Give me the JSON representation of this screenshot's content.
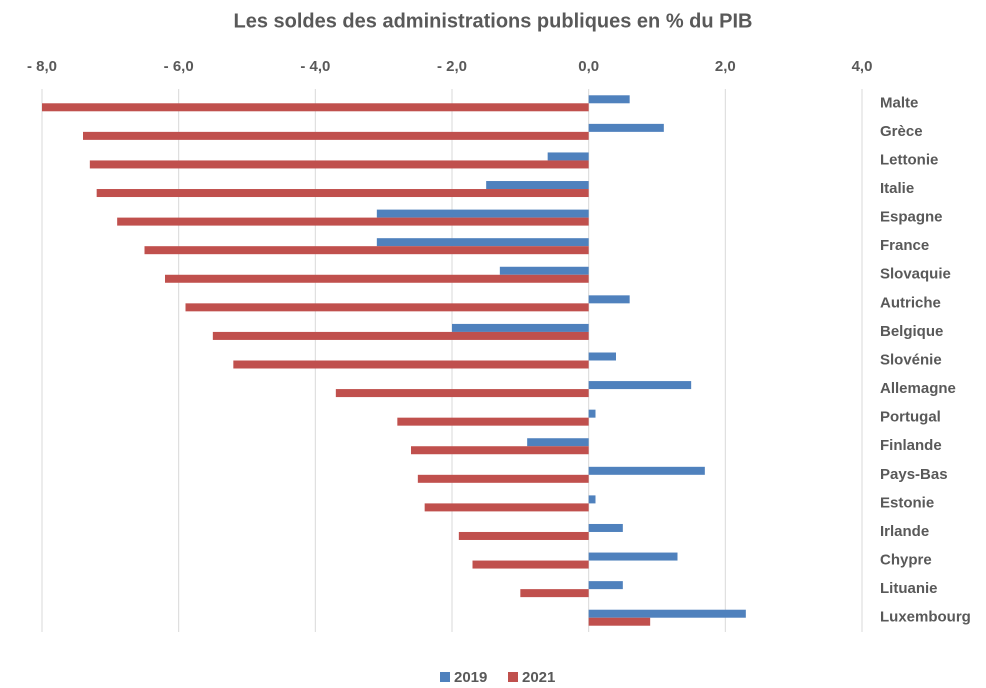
{
  "chart_data": {
    "type": "barh",
    "title": "Les soldes des administrations publiques en % du PIB",
    "categories": [
      "Malte",
      "Grèce",
      "Lettonie",
      "Italie",
      "Espagne",
      "France",
      "Slovaquie",
      "Autriche",
      "Belgique",
      "Slovénie",
      "Allemagne",
      "Portugal",
      "Finlande",
      "Pays-Bas",
      "Estonie",
      "Irlande",
      "Chypre",
      "Lituanie",
      "Luxembourg"
    ],
    "series": [
      {
        "name": "2019",
        "color": "#4f81bd",
        "values": [
          0.6,
          1.1,
          -0.6,
          -1.5,
          -3.1,
          -3.1,
          -1.3,
          0.6,
          -2.0,
          0.4,
          1.5,
          0.1,
          -0.9,
          1.7,
          0.1,
          0.5,
          1.3,
          0.5,
          2.3
        ]
      },
      {
        "name": "2021",
        "color": "#c0504d",
        "values": [
          -8.0,
          -7.4,
          -7.3,
          -7.2,
          -6.9,
          -6.5,
          -6.2,
          -5.9,
          -5.5,
          -5.2,
          -3.7,
          -2.8,
          -2.6,
          -2.5,
          -2.4,
          -1.9,
          -1.7,
          -1.0,
          0.9
        ]
      }
    ],
    "xlim": [
      -8,
      4
    ],
    "xticks": [
      {
        "value": -8,
        "label": "- 8,0"
      },
      {
        "value": -6,
        "label": "- 6,0"
      },
      {
        "value": -4,
        "label": "- 4,0"
      },
      {
        "value": -2,
        "label": "- 2,0"
      },
      {
        "value": 0,
        "label": "0,0"
      },
      {
        "value": 2,
        "label": "2,0"
      },
      {
        "value": 4,
        "label": "4,0"
      }
    ],
    "grid": true,
    "legend": "bottom"
  }
}
